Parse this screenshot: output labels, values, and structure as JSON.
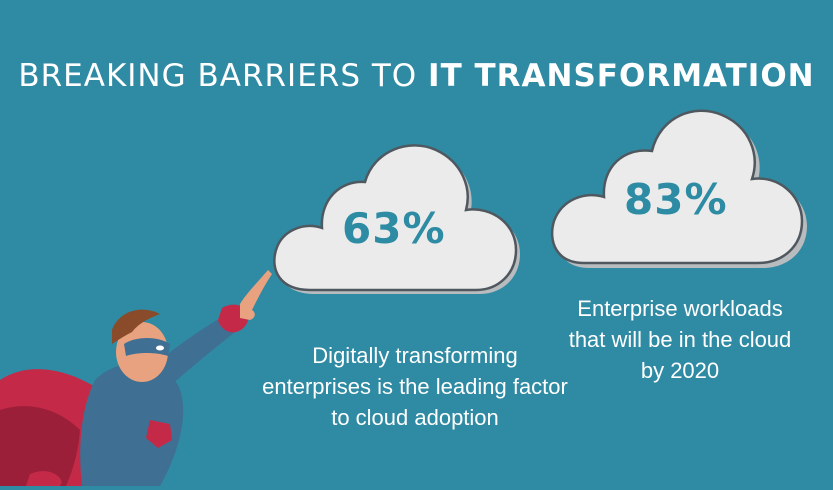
{
  "title": {
    "part1": "BREAKING BARRIERS TO ",
    "part2": "IT TRANSFORMATION"
  },
  "stats": [
    {
      "value": "63%",
      "caption_lines": [
        "Digitally transforming",
        "enterprises is the leading factor",
        "to cloud adoption"
      ]
    },
    {
      "value": "83%",
      "caption_lines": [
        "Enterprise workloads",
        "that will be in the cloud",
        "by 2020"
      ]
    }
  ],
  "colors": {
    "background": "#2f8aa3",
    "cloud_fill": "#ebebeb",
    "cloud_shadow": "#b9bcbe",
    "stat_text": "#2d8ba3",
    "hero_cape": "#c42a48",
    "hero_suit": "#3f6f93",
    "hero_skin": "#e8a27f"
  },
  "illustration": "superhero-figure"
}
